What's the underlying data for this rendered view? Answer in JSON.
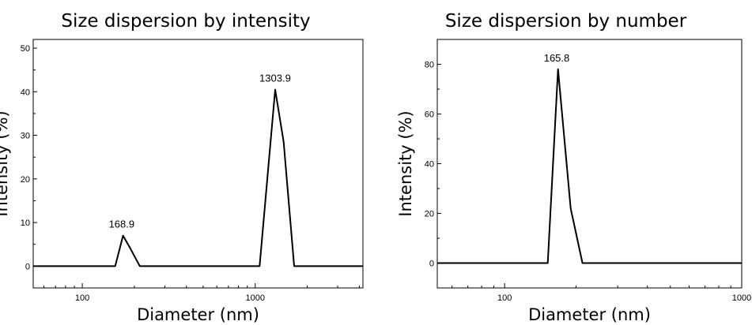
{
  "chart_data": [
    {
      "type": "line",
      "title": "Size dispersion by intensity",
      "xlabel": "Diameter (nm)",
      "ylabel": "Intensity (%)",
      "x_scale": "log",
      "xlim": [
        52,
        4200
      ],
      "ylim": [
        -5,
        52
      ],
      "x_ticks": [
        100,
        1000
      ],
      "x_tick_labels": [
        "100",
        "1000"
      ],
      "y_ticks": [
        0,
        10,
        20,
        30,
        40,
        50
      ],
      "y_tick_labels": [
        "0",
        "10",
        "20",
        "30",
        "40",
        "50"
      ],
      "grid": false,
      "series": [
        {
          "x": [
            52,
            155,
            172,
            190,
            215,
            1060,
            1305,
            1460,
            1680,
            4200
          ],
          "y": [
            0,
            0,
            7,
            4,
            0,
            0,
            40.5,
            28.5,
            0,
            0
          ]
        }
      ],
      "annotations": [
        {
          "x": 168.9,
          "y": 7,
          "text": "168.9"
        },
        {
          "x": 1303.9,
          "y": 40.5,
          "text": "1303.9"
        }
      ]
    },
    {
      "type": "line",
      "title": "Size dispersion by number",
      "xlabel": "Diameter (nm)",
      "ylabel": "Intensity (%)",
      "x_scale": "log",
      "xlim": [
        52,
        1000
      ],
      "ylim": [
        -10,
        90
      ],
      "x_ticks": [
        100,
        1000
      ],
      "x_tick_labels": [
        "100",
        "1000"
      ],
      "y_ticks": [
        0,
        20,
        40,
        60,
        80
      ],
      "y_tick_labels": [
        "0",
        "20",
        "40",
        "60",
        "80"
      ],
      "grid": false,
      "series": [
        {
          "x": [
            52,
            152,
            168,
            190,
            213,
            1000
          ],
          "y": [
            0,
            0,
            78,
            22,
            0,
            0
          ]
        }
      ],
      "annotations": [
        {
          "x": 165.8,
          "y": 78,
          "text": "165.8"
        }
      ]
    }
  ]
}
